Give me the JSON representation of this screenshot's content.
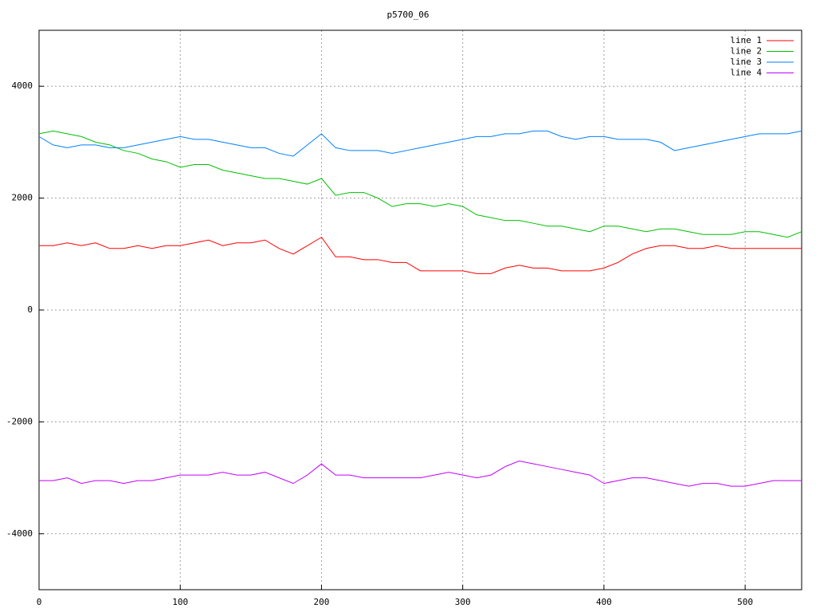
{
  "chart_data": {
    "type": "line",
    "title": "p5700_06",
    "x": [
      0,
      10,
      20,
      30,
      40,
      50,
      60,
      70,
      80,
      90,
      100,
      110,
      120,
      130,
      140,
      150,
      160,
      170,
      180,
      190,
      200,
      210,
      220,
      230,
      240,
      250,
      260,
      270,
      280,
      290,
      300,
      310,
      320,
      330,
      340,
      350,
      360,
      370,
      380,
      390,
      400,
      410,
      420,
      430,
      440,
      450,
      460,
      470,
      480,
      490,
      500,
      510,
      520,
      530,
      540
    ],
    "series": [
      {
        "name": "line 1",
        "color": "#ff0000",
        "values": [
          1150,
          1150,
          1200,
          1150,
          1200,
          1100,
          1100,
          1150,
          1100,
          1150,
          1150,
          1200,
          1250,
          1150,
          1200,
          1200,
          1250,
          1100,
          1000,
          1150,
          1300,
          950,
          950,
          900,
          900,
          850,
          850,
          700,
          700,
          700,
          700,
          650,
          650,
          750,
          800,
          750,
          750,
          700,
          700,
          700,
          750,
          850,
          1000,
          1100,
          1150,
          1150,
          1100,
          1100,
          1150,
          1100,
          1100,
          1100,
          1100,
          1100,
          1100
        ]
      },
      {
        "name": "line 2",
        "color": "#00c000",
        "values": [
          3150,
          3200,
          3150,
          3100,
          3000,
          2950,
          2850,
          2800,
          2700,
          2650,
          2550,
          2600,
          2600,
          2500,
          2450,
          2400,
          2350,
          2350,
          2300,
          2250,
          2350,
          2050,
          2100,
          2100,
          2000,
          1850,
          1900,
          1900,
          1850,
          1900,
          1850,
          1700,
          1650,
          1600,
          1600,
          1550,
          1500,
          1500,
          1450,
          1400,
          1500,
          1500,
          1450,
          1400,
          1450,
          1450,
          1400,
          1350,
          1350,
          1350,
          1400,
          1400,
          1350,
          1300,
          1400
        ]
      },
      {
        "name": "line 3",
        "color": "#0080ff",
        "values": [
          3100,
          2950,
          2900,
          2950,
          2950,
          2900,
          2900,
          2950,
          3000,
          3050,
          3100,
          3050,
          3050,
          3000,
          2950,
          2900,
          2900,
          2800,
          2750,
          2950,
          3150,
          2900,
          2850,
          2850,
          2850,
          2800,
          2850,
          2900,
          2950,
          3000,
          3050,
          3100,
          3100,
          3150,
          3150,
          3200,
          3200,
          3100,
          3050,
          3100,
          3100,
          3050,
          3050,
          3050,
          3000,
          2850,
          2900,
          2950,
          3000,
          3050,
          3100,
          3150,
          3150,
          3150,
          3200
        ]
      },
      {
        "name": "line 4",
        "color": "#c000ff",
        "values": [
          -3050,
          -3050,
          -3000,
          -3100,
          -3050,
          -3050,
          -3100,
          -3050,
          -3050,
          -3000,
          -2950,
          -2950,
          -2950,
          -2900,
          -2950,
          -2950,
          -2900,
          -3000,
          -3100,
          -2950,
          -2750,
          -2950,
          -2950,
          -3000,
          -3000,
          -3000,
          -3000,
          -3000,
          -2950,
          -2900,
          -2950,
          -3000,
          -2950,
          -2800,
          -2700,
          -2750,
          -2800,
          -2850,
          -2900,
          -2950,
          -3100,
          -3050,
          -3000,
          -3000,
          -3050,
          -3100,
          -3150,
          -3100,
          -3100,
          -3150,
          -3150,
          -3100,
          -3050,
          -3050,
          -3050
        ]
      }
    ],
    "xlim": [
      0,
      540
    ],
    "xticks": [
      0,
      100,
      200,
      300,
      400,
      500
    ],
    "ylim": [
      -5000,
      5000
    ],
    "yticks": [
      -4000,
      -2000,
      0,
      2000,
      4000
    ],
    "grid": true,
    "legend": "top-right"
  }
}
